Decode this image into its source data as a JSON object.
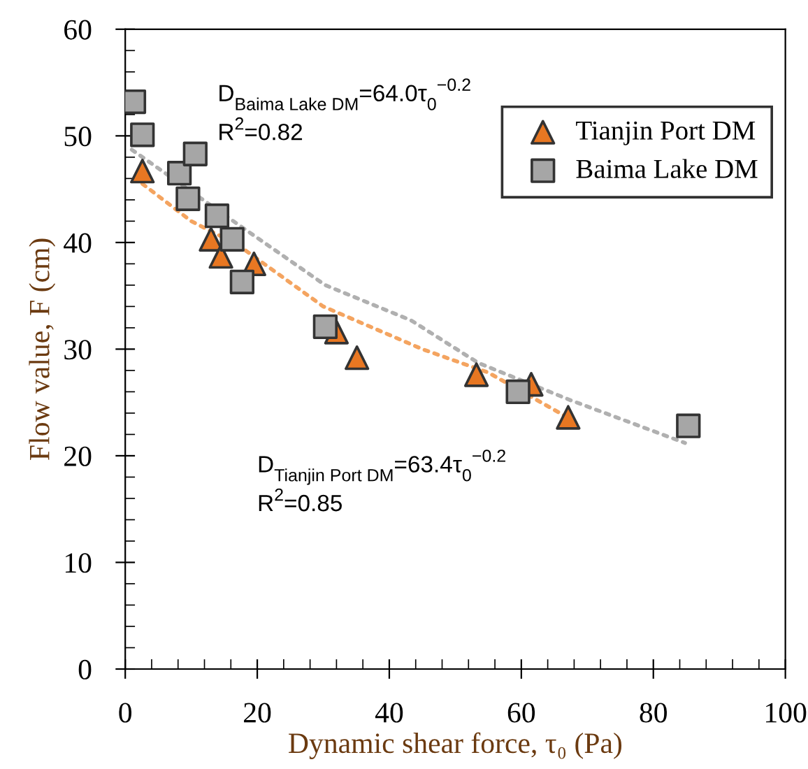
{
  "chart_data": {
    "type": "scatter",
    "xlabel": "Dynamic shear force, τ₀ (Pa)",
    "ylabel": "Flow value, F (cm)",
    "xlim": [
      0,
      100
    ],
    "xticks": [
      0,
      20,
      40,
      60,
      80,
      100
    ],
    "ylim": [
      0,
      60
    ],
    "yticks": [
      0,
      10,
      20,
      30,
      40,
      50,
      60
    ],
    "grid": false,
    "legend": "top right",
    "annotations": [
      "D$_{Baima Lake DM}$=64.0τ$_{0}$$^{−0.2}$\nR$^{2}$=0.82",
      "D$_{Tianjin Port DM}$=63.4τ$_{0}$$^{−0.2}$\nR$^{2}$=0.85"
    ],
    "series": [
      {
        "type": "line",
        "color": "#f4a460",
        "marker": "none",
        "line_style": "dotted",
        "x": [
          2.6,
          10,
          17,
          30,
          45,
          55,
          67
        ],
        "values": [
          45.5,
          42,
          39.8,
          34,
          30,
          27.8,
          23.6
        ]
      },
      {
        "type": "line",
        "color": "#b0b0b0",
        "marker": "none",
        "line_style": "dotted",
        "x": [
          1,
          17.3,
          30.3,
          43.3,
          53.5,
          67.5,
          84.8
        ],
        "values": [
          48.7,
          41.6,
          36,
          32.7,
          28.7,
          25.2,
          21.2
        ]
      },
      {
        "name": "Tianjin Port DM",
        "color": "#e87722",
        "marker": "triangle",
        "x": [
          2.6,
          13,
          14.5,
          17.3,
          19.5,
          32,
          35.1,
          53.2,
          61.5,
          67.1
        ],
        "values": [
          46.7,
          40.3,
          38.7,
          null,
          38.0,
          31.6,
          29.2,
          27.6,
          26.7,
          23.6
        ]
      },
      {
        "name": "Baima Lake DM",
        "color": "#a6a6a6",
        "marker": "square",
        "x": [
          1.3,
          2.6,
          8.2,
          10.6,
          9.5,
          13.9,
          16.2,
          17.7,
          30.3,
          59.5,
          85.3
        ],
        "values": [
          53.2,
          50.1,
          46.5,
          48.3,
          44.1,
          42.5,
          40.3,
          36.3,
          32.1,
          26.0,
          22.8
        ]
      }
    ]
  }
}
